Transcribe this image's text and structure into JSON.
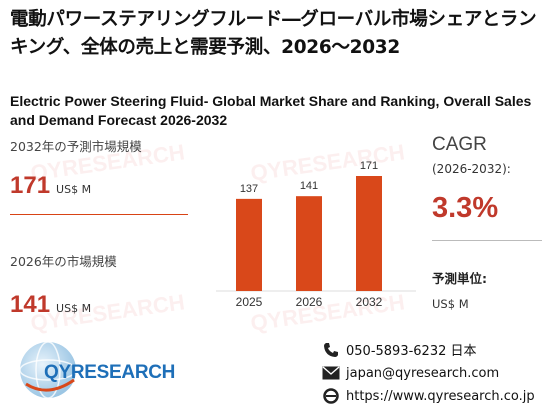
{
  "header": {
    "title_jp": "電動パワーステアリングフルード―グローバル市場シェアとランキング、全体の売上と需要予測、2026～2032",
    "title_en": "Electric Power Steering Fluid- Global Market Share and Ranking, Overall Sales and Demand Forecast 2026-2032"
  },
  "metrics": {
    "forecast": {
      "label": "2032年の予測市場規模",
      "value": "171",
      "unit": "US$ M"
    },
    "current": {
      "label": "2026年の市場規模",
      "value": "141",
      "unit": "US$ M"
    }
  },
  "cagr": {
    "label": "CAGR",
    "period": "(2026-2032):",
    "value": "3.3%"
  },
  "unit_info": {
    "label": "予測単位:",
    "value": "US$ M"
  },
  "brand": {
    "logo_text": "QYRESEARCH",
    "watermark": "QYRESEARCH"
  },
  "contact": {
    "phone": "050-5893-6232 日本",
    "email": "japan@qyresearch.com",
    "website": "https://www.qyresearch.co.jp"
  },
  "colors": {
    "accent": "#d84315",
    "bar": "#d9481a",
    "value_text": "#c0392b",
    "logo_blue": "#1e6fb8"
  },
  "chart_data": {
    "type": "bar",
    "categories": [
      "2025",
      "2026",
      "2032"
    ],
    "values": [
      137,
      141,
      171
    ],
    "data_labels": [
      "137",
      "141",
      "171"
    ],
    "title": "",
    "xlabel": "",
    "ylabel": "",
    "ylim": [
      0,
      171
    ],
    "grid": false,
    "legend": "none"
  }
}
